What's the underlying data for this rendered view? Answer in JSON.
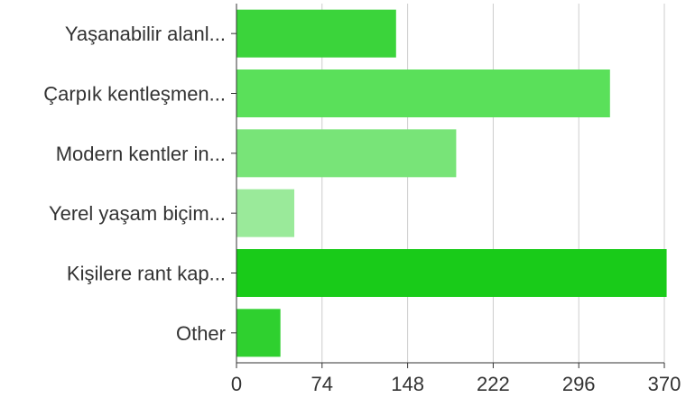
{
  "chart_data": {
    "type": "bar",
    "orientation": "horizontal",
    "categories": [
      "Yaşanabilir alanl...",
      "Çarpık kentleşmen...",
      "Modern kentler in...",
      "Yerel yaşam biçim...",
      "Kişilere rant kap...",
      "Other"
    ],
    "values": [
      138,
      323,
      190,
      50,
      372,
      38
    ],
    "bar_colors": [
      "#3bd43b",
      "#5ae05a",
      "#78e478",
      "#9aea9a",
      "#19cb19",
      "#2fd02f"
    ],
    "xlim": [
      0,
      370
    ],
    "x_ticks": [
      "0",
      "74",
      "148",
      "222",
      "296",
      "370"
    ],
    "grid": true,
    "title": "",
    "xlabel": "",
    "ylabel": ""
  }
}
